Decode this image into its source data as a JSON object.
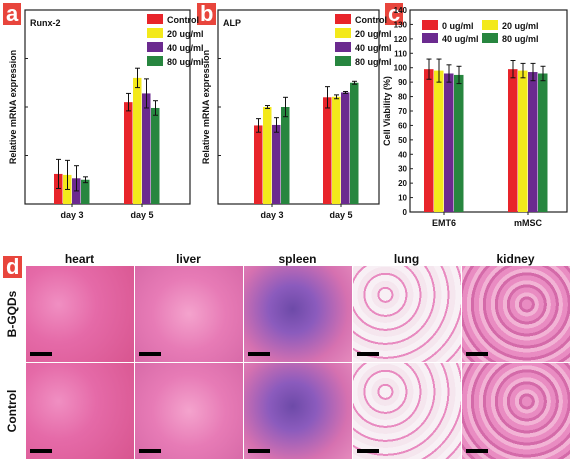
{
  "panels": {
    "a": {
      "letter": "a",
      "bg": "#e8453c"
    },
    "b": {
      "letter": "b",
      "bg": "#e8453c"
    },
    "c": {
      "letter": "c",
      "bg": "#e8453c"
    },
    "d": {
      "letter": "d",
      "bg": "#e8453c"
    }
  },
  "colors": {
    "red": "#e8242a",
    "yellow": "#f3e91b",
    "purple": "#6b2a8f",
    "green": "#27863f"
  },
  "chart_data": [
    {
      "type": "bar",
      "panel": "a",
      "title": "Runx-2",
      "ylabel": "Relative mRNA expression",
      "xlabel": "",
      "categories": [
        "day 3",
        "day 5"
      ],
      "ylim": [
        0,
        4
      ],
      "series": [
        {
          "name": "Control",
          "color": "#e8242a",
          "values": [
            0.62,
            2.1
          ],
          "errors": [
            0.3,
            0.18
          ]
        },
        {
          "name": "20 ug/ml",
          "color": "#f3e91b",
          "values": [
            0.6,
            2.6
          ],
          "errors": [
            0.3,
            0.2
          ]
        },
        {
          "name": "40 ug/ml",
          "color": "#6b2a8f",
          "values": [
            0.53,
            2.28
          ],
          "errors": [
            0.26,
            0.3
          ]
        },
        {
          "name": "80 ug/ml",
          "color": "#27863f",
          "values": [
            0.5,
            1.98
          ],
          "errors": [
            0.06,
            0.15
          ]
        }
      ],
      "legend": "top-right",
      "ticks": false
    },
    {
      "type": "bar",
      "panel": "b",
      "title": "ALP",
      "ylabel": "Relative mRNA expression",
      "xlabel": "",
      "categories": [
        "day 3",
        "day 5"
      ],
      "ylim": [
        0,
        4
      ],
      "series": [
        {
          "name": "Control",
          "color": "#e8242a",
          "values": [
            1.62,
            2.2
          ],
          "errors": [
            0.14,
            0.22
          ]
        },
        {
          "name": "20 ug/ml",
          "color": "#f3e91b",
          "values": [
            2.0,
            2.21
          ],
          "errors": [
            0.03,
            0.04
          ]
        },
        {
          "name": "40 ug/ml",
          "color": "#6b2a8f",
          "values": [
            1.63,
            2.3
          ],
          "errors": [
            0.15,
            0.02
          ]
        },
        {
          "name": "80 ug/ml",
          "color": "#27863f",
          "values": [
            2.0,
            2.5
          ],
          "errors": [
            0.2,
            0.03
          ]
        }
      ],
      "legend": "top-right",
      "ticks": false
    },
    {
      "type": "bar",
      "panel": "c",
      "title": "",
      "ylabel": "Cell Viability (%)",
      "xlabel": "",
      "categories": [
        "EMT6",
        "mMSC"
      ],
      "ylim": [
        0,
        140
      ],
      "yticks": [
        0,
        10,
        20,
        30,
        40,
        50,
        60,
        70,
        80,
        90,
        100,
        110,
        120,
        130,
        140
      ],
      "series": [
        {
          "name": "0 ug/ml",
          "color": "#e8242a",
          "values": [
            99,
            99
          ],
          "errors": [
            7,
            6
          ]
        },
        {
          "name": "20 ug/ml",
          "color": "#f3e91b",
          "values": [
            98,
            98
          ],
          "errors": [
            8,
            5
          ]
        },
        {
          "name": "40 ug/ml",
          "color": "#6b2a8f",
          "values": [
            96,
            97
          ],
          "errors": [
            6,
            6
          ]
        },
        {
          "name": "80 ug/ml",
          "color": "#27863f",
          "values": [
            95,
            96
          ],
          "errors": [
            6,
            5
          ]
        }
      ],
      "legend": "top"
    }
  ],
  "histology": {
    "columns": [
      "heart",
      "liver",
      "spleen",
      "lung",
      "kidney"
    ],
    "rows": [
      "B-GQDs",
      "Control"
    ]
  }
}
